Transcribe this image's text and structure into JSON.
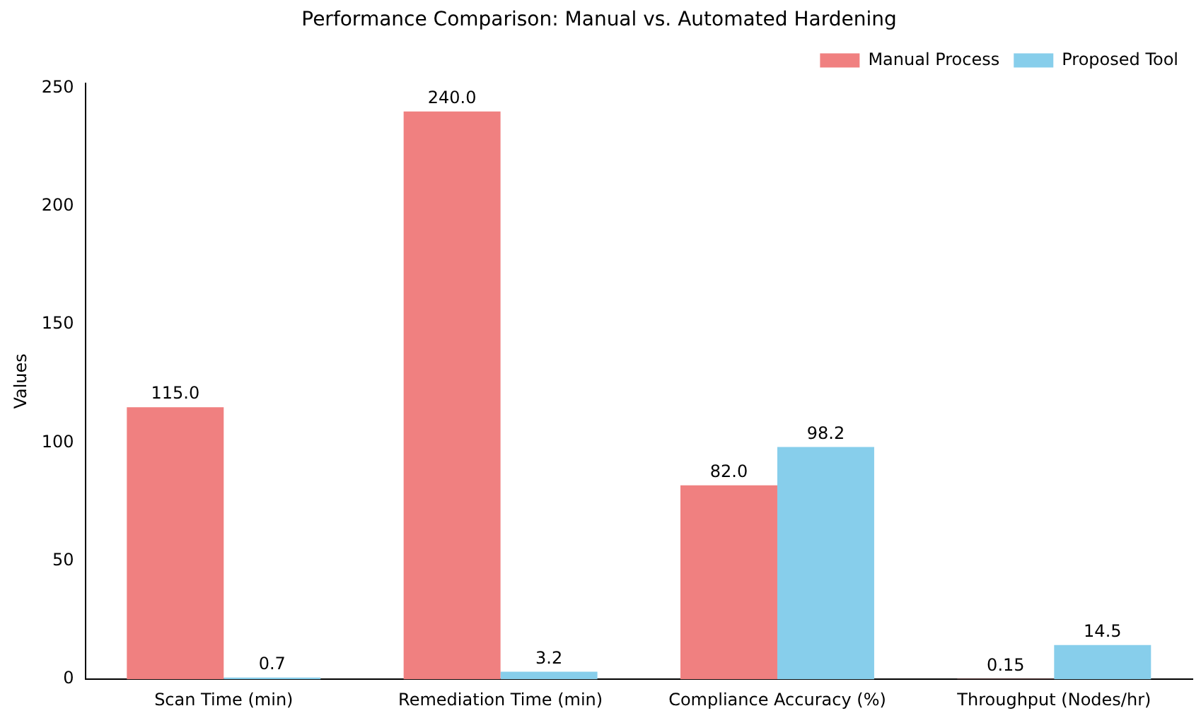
{
  "chart_data": {
    "type": "bar",
    "title": "Performance Comparison: Manual vs. Automated Hardening",
    "ylabel": "Values",
    "categories": [
      "Scan Time (min)",
      "Remediation Time (min)",
      "Compliance Accuracy (%)",
      "Throughput (Nodes/hr)"
    ],
    "series": [
      {
        "name": "Manual Process",
        "color": "#f08080",
        "values": [
          115,
          240,
          82,
          0.15
        ],
        "value_labels": [
          "115.0",
          "240.0",
          "82.0",
          "0.15"
        ]
      },
      {
        "name": "Proposed Tool",
        "color": "#87ceeb",
        "values": [
          0.7,
          3.2,
          98.2,
          14.5
        ],
        "value_labels": [
          "0.7",
          "3.2",
          "98.2",
          "14.5"
        ]
      }
    ],
    "ylim": [
      0,
      252
    ],
    "yticks": [
      0,
      50,
      100,
      150,
      200,
      250
    ],
    "grid": false,
    "legend": "top right"
  }
}
